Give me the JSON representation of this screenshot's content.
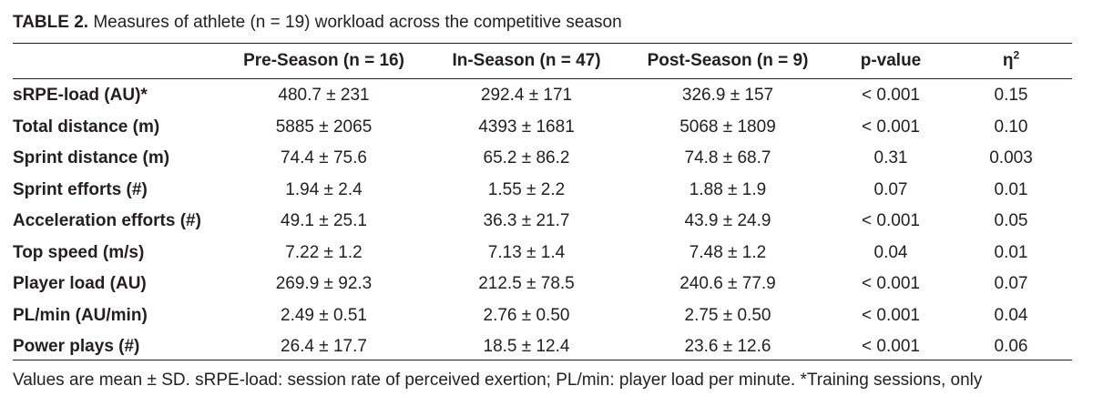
{
  "caption": {
    "tag": "TABLE 2.",
    "text": "Measures of athlete (n = 19) workload across the competitive season"
  },
  "table": {
    "headers": [
      "",
      "Pre-Season (n = 16)",
      "In-Season (n = 47)",
      "Post-Season (n = 9)",
      "p-value",
      "η",
      "2"
    ],
    "rows": [
      [
        "sRPE-load (AU)*",
        "480.7 ± 231",
        "292.4 ± 171",
        "326.9 ± 157",
        "< 0.001",
        "0.15"
      ],
      [
        "Total distance (m)",
        "5885 ± 2065",
        "4393 ± 1681",
        "5068 ± 1809",
        "< 0.001",
        "0.10"
      ],
      [
        "Sprint distance (m)",
        "74.4 ± 75.6",
        "65.2 ± 86.2",
        "74.8 ± 68.7",
        "0.31",
        "0.003"
      ],
      [
        "Sprint efforts (#)",
        "1.94 ± 2.4",
        "1.55 ± 2.2",
        "1.88 ± 1.9",
        "0.07",
        "0.01"
      ],
      [
        "Acceleration efforts (#)",
        "49.1 ± 25.1",
        "36.3 ± 21.7",
        "43.9 ± 24.9",
        "< 0.001",
        "0.05"
      ],
      [
        "Top speed (m/s)",
        "7.22 ± 1.2",
        "7.13 ± 1.4",
        "7.48 ± 1.2",
        "0.04",
        "0.01"
      ],
      [
        "Player load (AU)",
        "269.9 ± 92.3",
        "212.5 ± 78.5",
        "240.6 ± 77.9",
        "< 0.001",
        "0.07"
      ],
      [
        "PL/min (AU/min)",
        "2.49 ± 0.51",
        "2.76 ± 0.50",
        "2.75 ± 0.50",
        "< 0.001",
        "0.04"
      ],
      [
        "Power plays (#)",
        "26.4 ± 17.7",
        "18.5 ± 12.4",
        "23.6 ± 12.6",
        "< 0.001",
        "0.06"
      ]
    ]
  },
  "footnote": "Values are mean ± SD. sRPE-load: session rate of perceived exertion; PL/min: player load per minute. *Training sessions, only"
}
